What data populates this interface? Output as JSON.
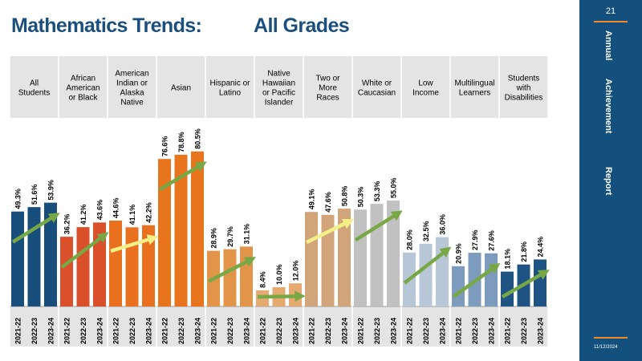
{
  "title": {
    "part1": "Mathematics Trends:",
    "part2": "All   Grades"
  },
  "sidebar": {
    "page_number": "21",
    "word1": "Annual",
    "word2": "Achievement",
    "word3": "Report",
    "date": "11/12/2024"
  },
  "chart_data": {
    "type": "bar",
    "title": "Mathematics Trends:   All Grades",
    "years": [
      "2021-22",
      "2022-23",
      "2023-24"
    ],
    "groups": [
      {
        "name": "All Students",
        "label_lines": [
          "All",
          "Students"
        ],
        "values": [
          49.3,
          51.6,
          53.9
        ],
        "labels": [
          "49.3%",
          "51.6%",
          "53.9%"
        ],
        "color": "#174e7c",
        "arrow": "#78a846"
      },
      {
        "name": "African American or Black",
        "label_lines": [
          "African",
          "American",
          "or Black"
        ],
        "values": [
          36.2,
          41.2,
          43.6
        ],
        "labels": [
          "36.2%",
          "41.2%",
          "43.6%"
        ],
        "color": "#d9502a",
        "arrow": "#78a846"
      },
      {
        "name": "American Indian or Alaska Native",
        "label_lines": [
          "American",
          "Indian or",
          "Alaska",
          "Native"
        ],
        "values": [
          44.6,
          41.1,
          42.2
        ],
        "labels": [
          "44.6%",
          "41.1%",
          "42.2%"
        ],
        "color": "#e8701f",
        "arrow": "#f3f088"
      },
      {
        "name": "Asian",
        "label_lines": [
          "Asian"
        ],
        "values": [
          76.6,
          78.8,
          80.5
        ],
        "labels": [
          "76.6%",
          "78.8%",
          "80.5%"
        ],
        "color": "#e8741d",
        "arrow": "#78a846"
      },
      {
        "name": "Hispanic or Latino",
        "label_lines": [
          "Hispanic or",
          "Latino"
        ],
        "values": [
          28.9,
          29.7,
          31.1
        ],
        "labels": [
          "28.9%",
          "29.7%",
          "31.1%"
        ],
        "color": "#e29548",
        "arrow": "#78a846"
      },
      {
        "name": "Native Hawaiian or Pacific Islander",
        "label_lines": [
          "Native",
          "Hawaiian",
          "or Pacific",
          "Islander"
        ],
        "values": [
          8.4,
          10.0,
          12.0
        ],
        "labels": [
          "8.4%",
          "10.0%",
          "12.0%"
        ],
        "color": "#e6aa70",
        "arrow": "#78a846"
      },
      {
        "name": "Two or More Races",
        "label_lines": [
          "Two or",
          "More",
          "Races"
        ],
        "values": [
          49.1,
          47.6,
          50.8
        ],
        "labels": [
          "49.1%",
          "47.6%",
          "50.8%"
        ],
        "color": "#d2a47a",
        "arrow": "#f3f088"
      },
      {
        "name": "White or Caucasian",
        "label_lines": [
          "White or",
          "Caucasian"
        ],
        "values": [
          50.3,
          53.3,
          55.0
        ],
        "labels": [
          "50.3%",
          "53.3%",
          "55.0%"
        ],
        "color": "#c1c1c1",
        "arrow": "#78a846"
      },
      {
        "name": "Low Income",
        "label_lines": [
          "Low",
          "Income"
        ],
        "values": [
          28.0,
          32.5,
          36.0
        ],
        "labels": [
          "28.0%",
          "32.5%",
          "36.0%"
        ],
        "color": "#b8c7d8",
        "arrow": "#78a846"
      },
      {
        "name": "Multilingual Learners",
        "label_lines": [
          "Multilingual",
          "Learners"
        ],
        "values": [
          20.9,
          27.9,
          27.6
        ],
        "labels": [
          "20.9%",
          "27.9%",
          "27.6%"
        ],
        "color": "#7d9cbd",
        "arrow": "#78a846"
      },
      {
        "name": "Students with Disabilities",
        "label_lines": [
          "Students",
          "with",
          "Disabilities"
        ],
        "values": [
          18.1,
          21.8,
          24.4
        ],
        "labels": [
          "18.1%",
          "21.8%",
          "24.4%"
        ],
        "color": "#1f5383",
        "arrow": "#78a846"
      }
    ],
    "ylim": [
      0,
      100
    ]
  }
}
